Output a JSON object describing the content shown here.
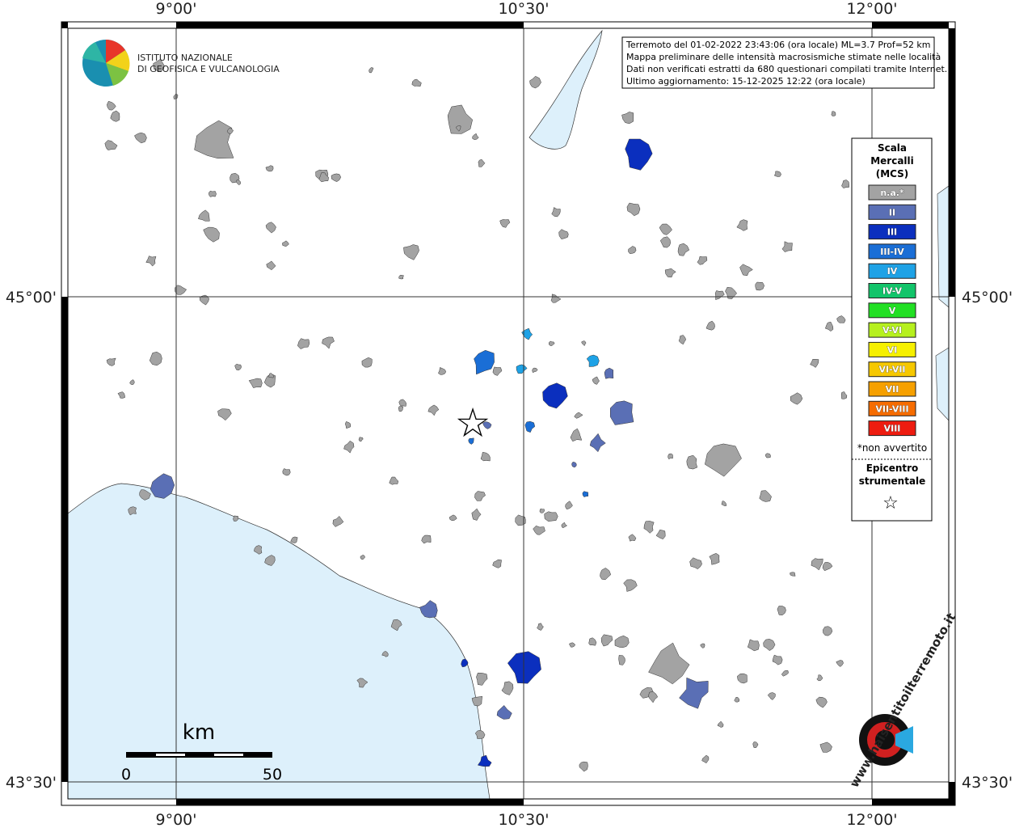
{
  "header": {
    "institute": [
      "ISTITUTO NAZIONALE",
      "DI GEOFISICA E VULCANOLOGIA"
    ]
  },
  "info": [
    "Terremoto del 01-02-2022 23:43:06 (ora locale) ML=3.7 Prof=52 km",
    "Mappa preliminare delle intensità macrosismiche stimate nelle località",
    "Dati non verificati estratti da 680 questionari compilati tramite Internet.",
    "Ultimo aggiornamento: 15-12-2025 12:22 (ora locale)"
  ],
  "axes": {
    "lon_labels": [
      "9°00'",
      "10°30'",
      "12°00'"
    ],
    "lat_labels": [
      "45°00'",
      "43°30'"
    ]
  },
  "legend": {
    "title": [
      "Scala",
      "Mercalli",
      "(MCS)"
    ],
    "items": [
      {
        "label": "n.a.*",
        "color": "#a3a3a3"
      },
      {
        "label": "II",
        "color": "#5a6fb5"
      },
      {
        "label": "III",
        "color": "#0b2fbe"
      },
      {
        "label": "III-IV",
        "color": "#1a6ed6"
      },
      {
        "label": "IV",
        "color": "#1ea2e6"
      },
      {
        "label": "IV-V",
        "color": "#12c46a"
      },
      {
        "label": "V",
        "color": "#22e024"
      },
      {
        "label": "V-VI",
        "color": "#b6f01e"
      },
      {
        "label": "VI",
        "color": "#f6f000"
      },
      {
        "label": "VI-VII",
        "color": "#f6c800"
      },
      {
        "label": "VII",
        "color": "#f6a000"
      },
      {
        "label": "VII-VIII",
        "color": "#f66c00"
      },
      {
        "label": "VIII",
        "color": "#ee1c10"
      }
    ],
    "note": "*non avvertito",
    "epicenter": [
      "Epicentro",
      "strumentale"
    ],
    "epicenter_symbol": "☆"
  },
  "scale": {
    "title": "km",
    "labels": [
      "0",
      "50"
    ]
  },
  "watermark": "www.haisentitoilterremoto.it"
}
